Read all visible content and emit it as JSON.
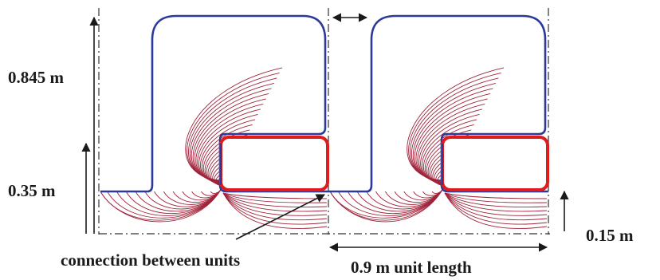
{
  "labels": {
    "height_total": "0.845 m",
    "height_base": "0.35 m",
    "height_offset": "0.15 m",
    "connection": "connection between units",
    "unit_length": "0.9 m unit length"
  },
  "colors": {
    "outline": "#2b3a9a",
    "field_lines": "#a0243a",
    "conductor": "#e01b1b",
    "text": "#1a1a1a",
    "guides": "#333333"
  }
}
